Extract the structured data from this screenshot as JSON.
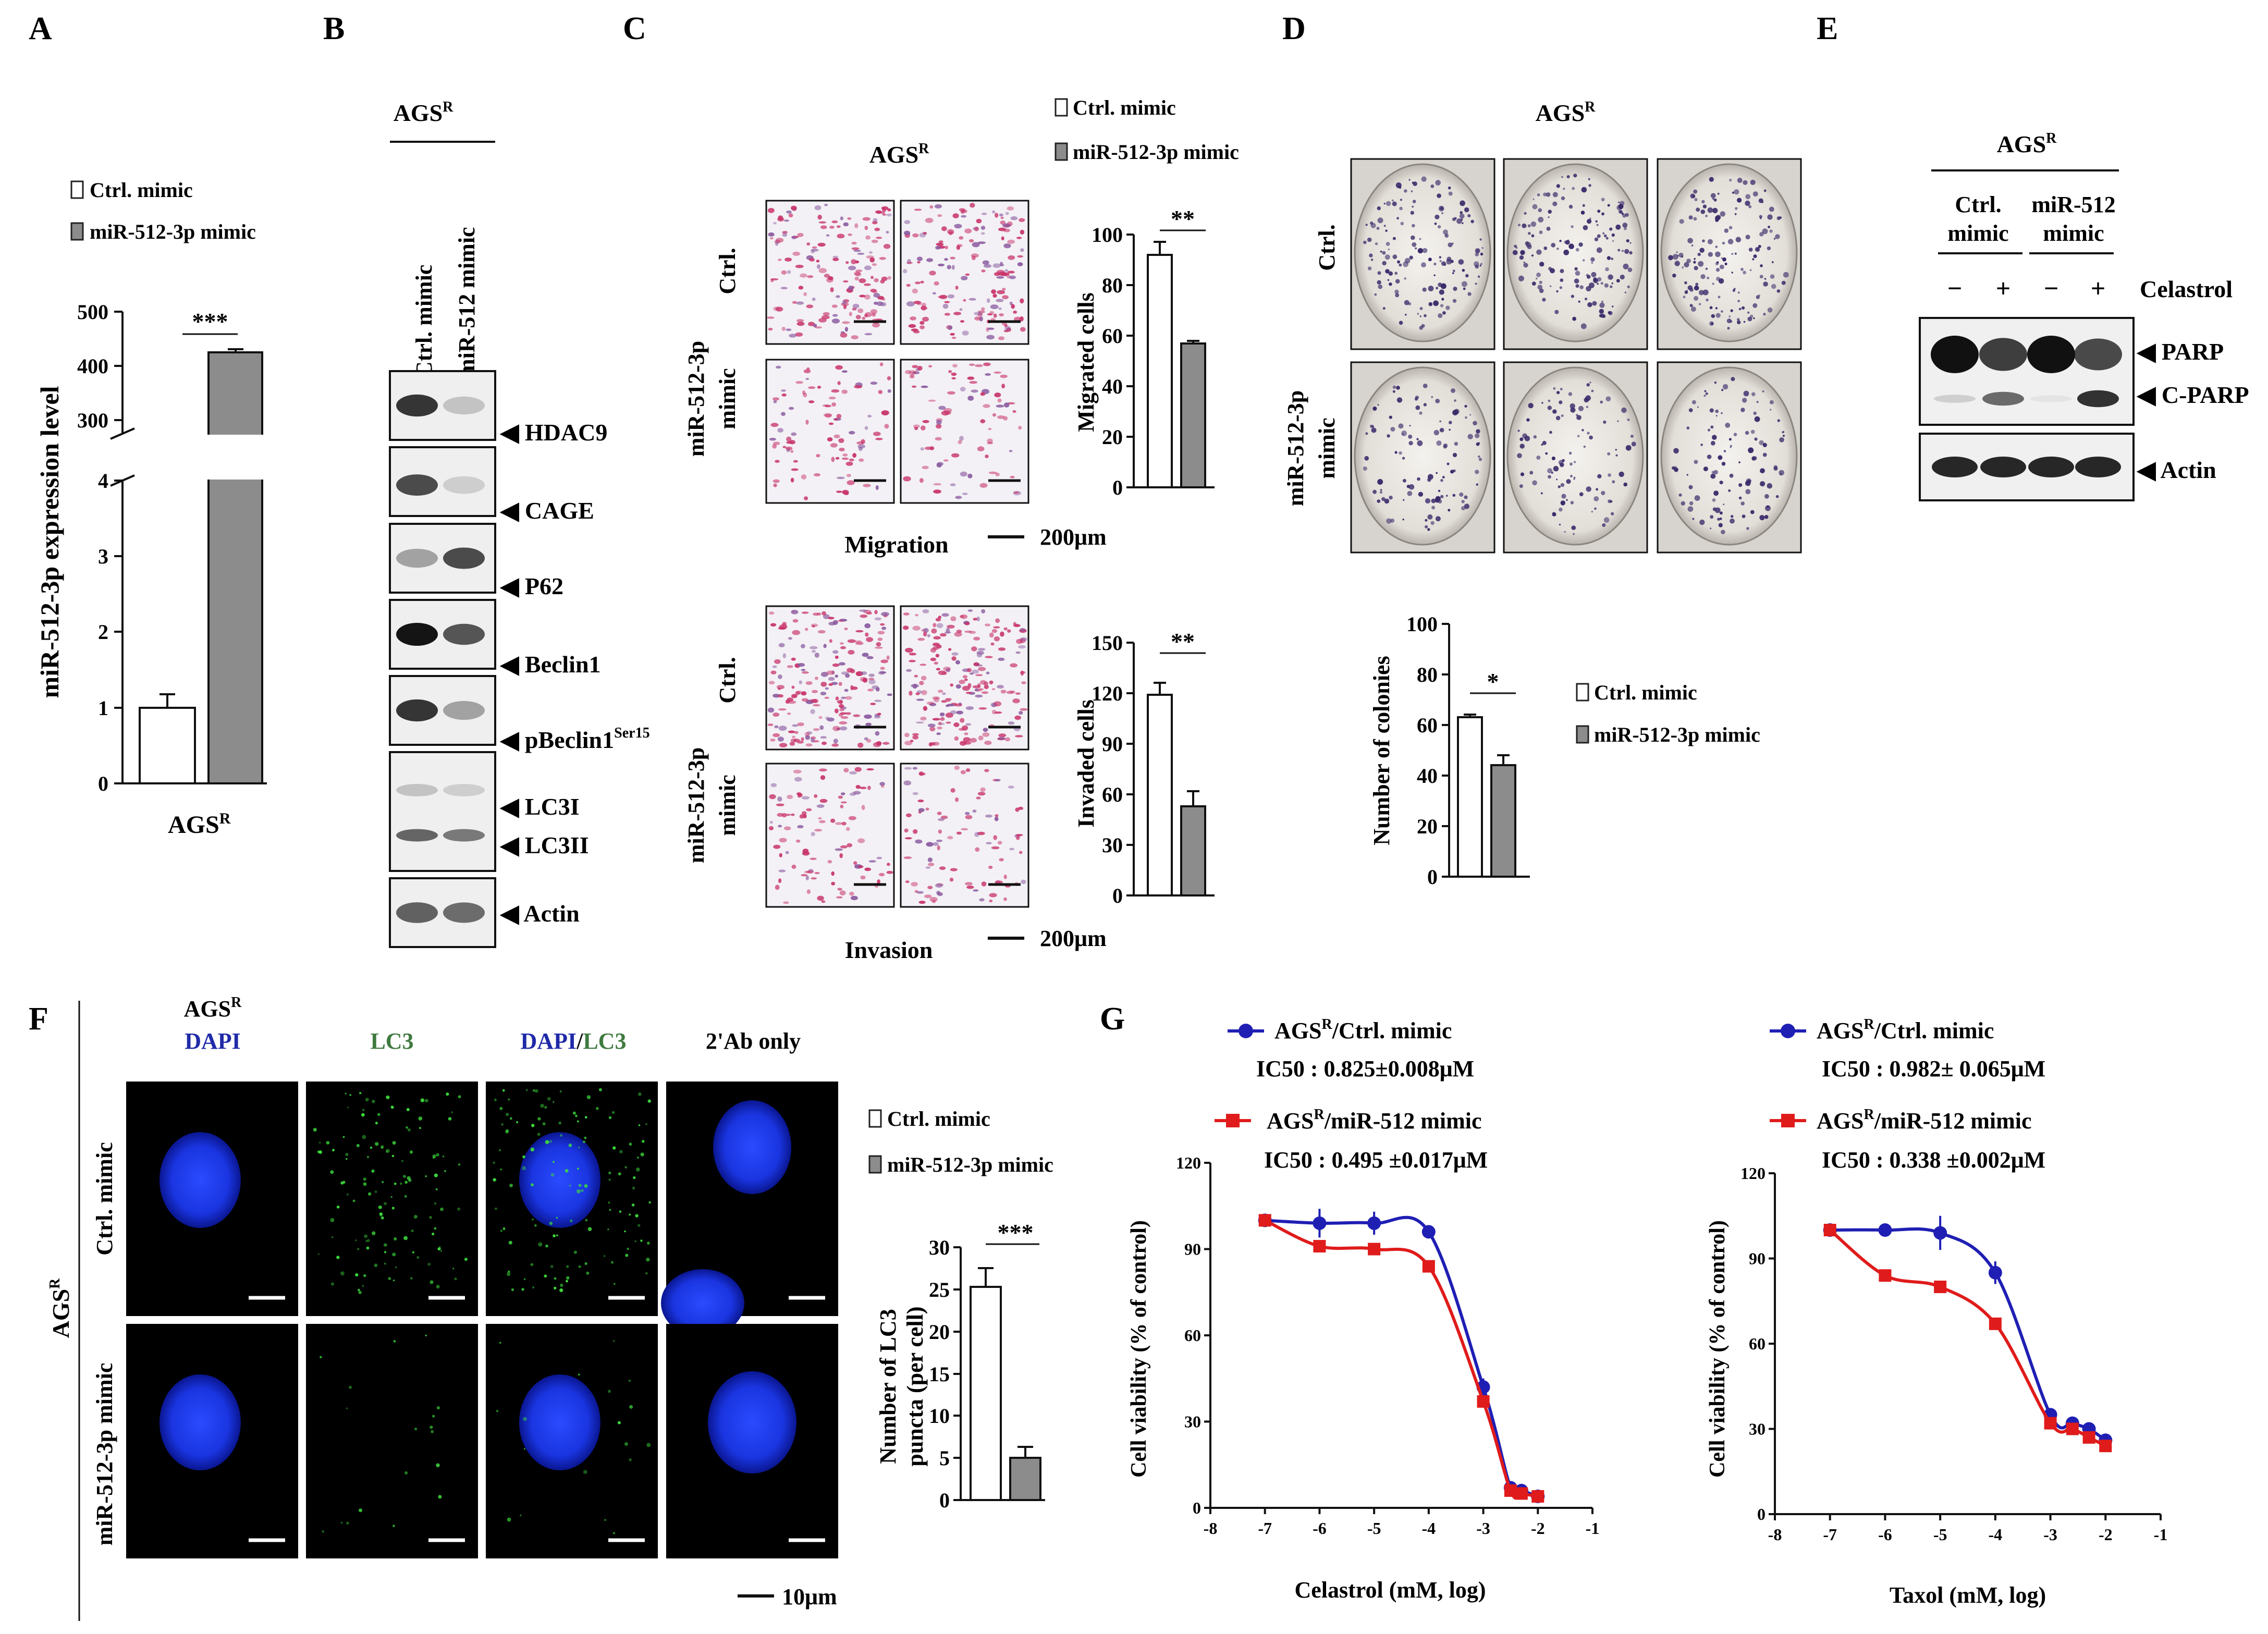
{
  "panels": {
    "A": "A",
    "B": "B",
    "C": "C",
    "D": "D",
    "E": "E",
    "F": "F",
    "G": "G"
  },
  "legend": {
    "ctrl": "Ctrl. mimic",
    "mir_3p": "miR-512-3p mimic"
  },
  "colors": {
    "ctrl_bar": "#ffffff",
    "mir_bar": "#8c8c8c",
    "blue_series": "#1f1fb4",
    "red_series": "#e01b1b",
    "nucleus": "#1a3cff",
    "lc3_green": "#3cdc3c",
    "membrane_pink": "#c8336a",
    "colony": "#3a2a6a"
  },
  "panel_a": {
    "ylabel": "miR-512-3p expression level",
    "xlabel": "AGS",
    "xlabel_sup": "R",
    "sig": "***",
    "upper_ticks": [
      "500",
      "400",
      "300"
    ],
    "lower_ticks": [
      "4",
      "3",
      "2",
      "1",
      "0"
    ]
  },
  "panel_b": {
    "group": "AGS",
    "group_sup": "R",
    "lane1": "Ctrl. mimic",
    "lane2": "miR-512 mimic",
    "labels": [
      "HDAC9",
      "CAGE",
      "P62",
      "Beclin1",
      "pBeclin1",
      "LC3I",
      "LC3II",
      "Actin"
    ],
    "pbeclin_sup": "Ser15"
  },
  "panel_c": {
    "title": "AGS",
    "title_sup": "R",
    "row_ctrl": "Ctrl.",
    "row_mir_1": "miR-512-3p",
    "row_mir_2": "mimic",
    "migration": "Migration",
    "invasion": "Invasion",
    "scale": "200μm",
    "mig_ylabel": "Migrated cells",
    "inv_ylabel": "Invaded cells",
    "mig_sig": "**",
    "inv_sig": "**",
    "mig_ticks": [
      "100",
      "80",
      "60",
      "40",
      "20",
      "0"
    ],
    "inv_ticks": [
      "150",
      "120",
      "90",
      "60",
      "30",
      "0"
    ]
  },
  "panel_d": {
    "title": "AGS",
    "title_sup": "R",
    "row_ctrl": "Ctrl.",
    "row_mir_1": "miR-512-3p",
    "row_mir_2": "mimic",
    "ylabel": "Number of colonies",
    "sig": "*",
    "ticks": [
      "100",
      "80",
      "60",
      "40",
      "20",
      "0"
    ]
  },
  "panel_e": {
    "group": "AGS",
    "group_sup": "R",
    "col1_1": "Ctrl.",
    "col1_2": "mimic",
    "col2_1": "miR-512",
    "col2_2": "mimic",
    "signs": [
      "−",
      "+",
      "−",
      "+"
    ],
    "treatment": "Celastrol",
    "labels": [
      "PARP",
      "C-PARP",
      "Actin"
    ]
  },
  "panel_f": {
    "head_ags": "AGS",
    "head_ags_sup": "R",
    "col_dapi": "DAPI",
    "col_lc3": "LC3",
    "col_merge_a": "DAPI",
    "col_merge_sep": "/",
    "col_merge_b": "LC3",
    "col_2ab": "2'Ab only",
    "side": "AGS",
    "side_sup": "R",
    "row_ctrl": "Ctrl. mimic",
    "row_mir": "miR-512-3p mimic",
    "scale": "10μm",
    "ylabel_1": "Number of LC3",
    "ylabel_2": "puncta (per cell)",
    "sig": "***",
    "ticks": [
      "30",
      "25",
      "20",
      "15",
      "10",
      "5",
      "0"
    ]
  },
  "panel_g": {
    "ylabel": "Cell viability  (% of control)",
    "left": {
      "s1_name": "AGS",
      "s1_sup": "R",
      "s1_rest": "/Ctrl. mimic",
      "s1_ic50": "IC50 : 0.825±0.008μM",
      "s2_name": "AGS",
      "s2_sup": "R",
      "s2_rest": "/miR-512 mimic",
      "s2_ic50": "IC50 : 0.495 ±0.017μM",
      "xlabel": "Celastrol (mM, log)"
    },
    "right": {
      "s1_name": "AGS",
      "s1_sup": "R",
      "s1_rest": "/Ctrl. mimic",
      "s1_ic50": "IC50 : 0.982± 0.065μM",
      "s2_name": "AGS",
      "s2_sup": "R",
      "s2_rest": "/miR-512 mimic",
      "s2_ic50": "IC50 : 0.338 ±0.002μM",
      "xlabel": "Taxol (mM, log)"
    },
    "yticks": [
      "120",
      "90",
      "60",
      "30",
      "0"
    ],
    "xticks": [
      "-8",
      "-7",
      "-6",
      "-5",
      "-4",
      "-3",
      "-2",
      "-1"
    ]
  },
  "chart_data": [
    {
      "type": "bar",
      "panel": "A",
      "categories": [
        "Ctrl. mimic",
        "miR-512-3p mimic"
      ],
      "values": [
        1.0,
        420
      ],
      "errors": [
        0.18,
        5
      ],
      "xlabel": "AGSR",
      "ylabel": "miR-512-3p expression level",
      "ylim": [
        0,
        500
      ],
      "axis_break": [
        4,
        300
      ]
    },
    {
      "type": "bar",
      "panel": "C-migration",
      "categories": [
        "Ctrl. mimic",
        "miR-512-3p mimic"
      ],
      "values": [
        92,
        57
      ],
      "errors": [
        5,
        1
      ],
      "ylabel": "Migrated cells",
      "ylim": [
        0,
        100
      ]
    },
    {
      "type": "bar",
      "panel": "C-invasion",
      "categories": [
        "Ctrl. mimic",
        "miR-512-3p mimic"
      ],
      "values": [
        119,
        53
      ],
      "errors": [
        7,
        9
      ],
      "ylabel": "Invaded cells",
      "ylim": [
        0,
        150
      ]
    },
    {
      "type": "bar",
      "panel": "D",
      "categories": [
        "Ctrl. mimic",
        "miR-512-3p mimic"
      ],
      "values": [
        63,
        44
      ],
      "errors": [
        1,
        4
      ],
      "ylabel": "Number of colonies",
      "ylim": [
        0,
        100
      ]
    },
    {
      "type": "bar",
      "panel": "F",
      "categories": [
        "Ctrl. mimic",
        "miR-512-3p mimic"
      ],
      "values": [
        25.3,
        5.0
      ],
      "errors": [
        2.2,
        1.3
      ],
      "ylabel": "Number of LC3 puncta (per cell)",
      "ylim": [
        0,
        30
      ]
    },
    {
      "type": "scatter",
      "panel": "G-left",
      "xlabel": "Celastrol (mM, log)",
      "ylabel": "Cell viability  (% of control)",
      "xlim": [
        -8,
        -1
      ],
      "ylim": [
        0,
        120
      ],
      "series": [
        {
          "name": "AGSR/Ctrl. mimic",
          "x": [
            -7,
            -6,
            -5,
            -4,
            -3,
            -2.5,
            -2.3,
            -2
          ],
          "y": [
            100,
            99,
            99,
            96,
            42,
            7,
            6,
            4
          ],
          "errors": [
            2,
            5,
            4,
            2,
            3,
            2,
            2,
            2
          ]
        },
        {
          "name": "AGSR/miR-512 mimic",
          "x": [
            -7,
            -6,
            -5,
            -4,
            -3,
            -2.5,
            -2.3,
            -2
          ],
          "y": [
            100,
            91,
            90,
            84,
            37,
            6,
            5,
            4
          ],
          "errors": [
            0,
            0,
            0,
            0,
            0,
            0,
            0,
            0
          ]
        }
      ]
    },
    {
      "type": "scatter",
      "panel": "G-right",
      "xlabel": "Taxol (mM, log)",
      "ylabel": "Cell viability  (% of control)",
      "xlim": [
        -8,
        -1
      ],
      "ylim": [
        0,
        120
      ],
      "series": [
        {
          "name": "AGSR/Ctrl. mimic",
          "x": [
            -7,
            -6,
            -5,
            -4,
            -3,
            -2.6,
            -2.3,
            -2
          ],
          "y": [
            100,
            100,
            99,
            85,
            35,
            32,
            30,
            26
          ],
          "errors": [
            2,
            1,
            6,
            4,
            2,
            2,
            2,
            2
          ]
        },
        {
          "name": "AGSR/miR-512 mimic",
          "x": [
            -7,
            -6,
            -5,
            -4,
            -3,
            -2.6,
            -2.3,
            -2
          ],
          "y": [
            100,
            84,
            80,
            67,
            32,
            30,
            27,
            24
          ],
          "errors": [
            0,
            0,
            0,
            0,
            0,
            0,
            0,
            0
          ]
        }
      ]
    }
  ]
}
